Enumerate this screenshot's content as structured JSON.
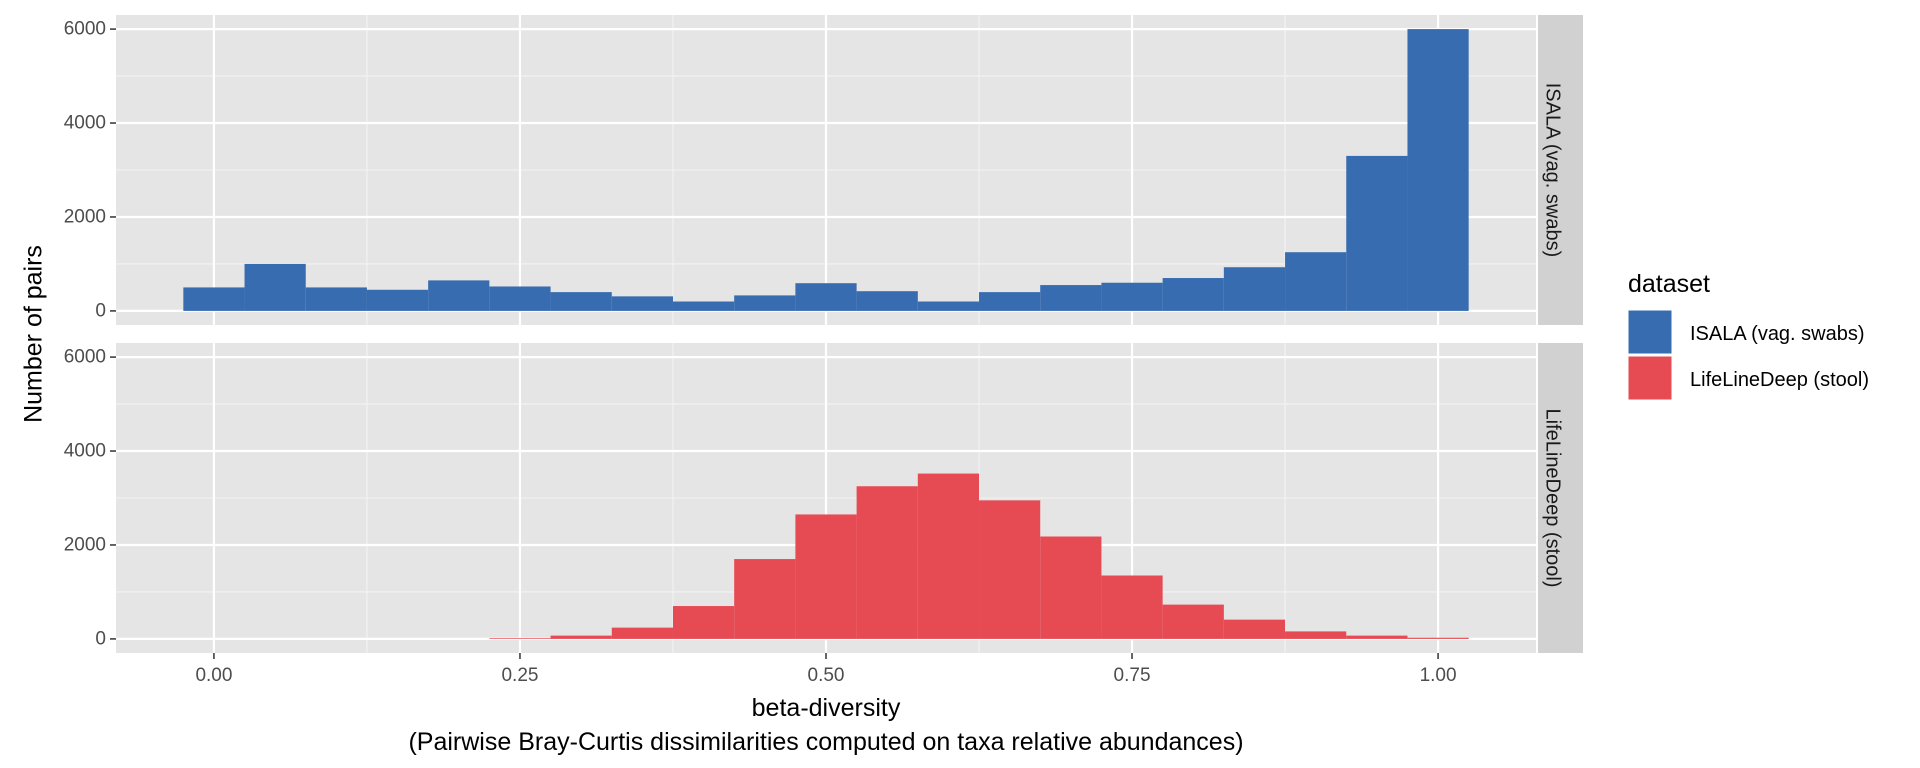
{
  "chart_data": {
    "type": "bar",
    "subtype": "faceted-histogram",
    "xlabel": "beta-diversity",
    "xlabel_line2": "(Pairwise Bray-Curtis dissimilarities computed on taxa relative abundances)",
    "ylabel": "Number of pairs",
    "xlim": [
      -0.08,
      1.08
    ],
    "ylim": [
      -300,
      6300
    ],
    "x_ticks": [
      0.0,
      0.25,
      0.5,
      0.75,
      1.0
    ],
    "x_tick_labels": [
      "0.00",
      "0.25",
      "0.50",
      "0.75",
      "1.00"
    ],
    "y_ticks": [
      0,
      2000,
      4000,
      6000
    ],
    "y_tick_labels": [
      "0",
      "2000",
      "4000",
      "6000"
    ],
    "bin_width": 0.05,
    "bin_centers": [
      0.0,
      0.05,
      0.1,
      0.15,
      0.2,
      0.25,
      0.3,
      0.35,
      0.4,
      0.45,
      0.5,
      0.55,
      0.6,
      0.65,
      0.7,
      0.75,
      0.8,
      0.85,
      0.9,
      0.95,
      1.0
    ],
    "grid": true,
    "legend_title": "dataset",
    "legend_position": "right",
    "series": [
      {
        "name": "ISALA (vag. swabs)",
        "facet": "ISALA (vag. swabs)",
        "color": "#386cb0",
        "values": [
          500,
          1000,
          500,
          450,
          650,
          520,
          400,
          310,
          200,
          330,
          590,
          420,
          200,
          400,
          550,
          600,
          700,
          930,
          1250,
          3300,
          6000
        ]
      },
      {
        "name": "LifeLineDeep (stool)",
        "facet": "LifeLineDeep (stool)",
        "color": "#e64b53",
        "values": [
          0,
          0,
          0,
          0,
          0,
          15,
          70,
          240,
          700,
          1700,
          2650,
          3250,
          3520,
          2950,
          2180,
          1350,
          730,
          410,
          160,
          70,
          25
        ]
      }
    ]
  }
}
